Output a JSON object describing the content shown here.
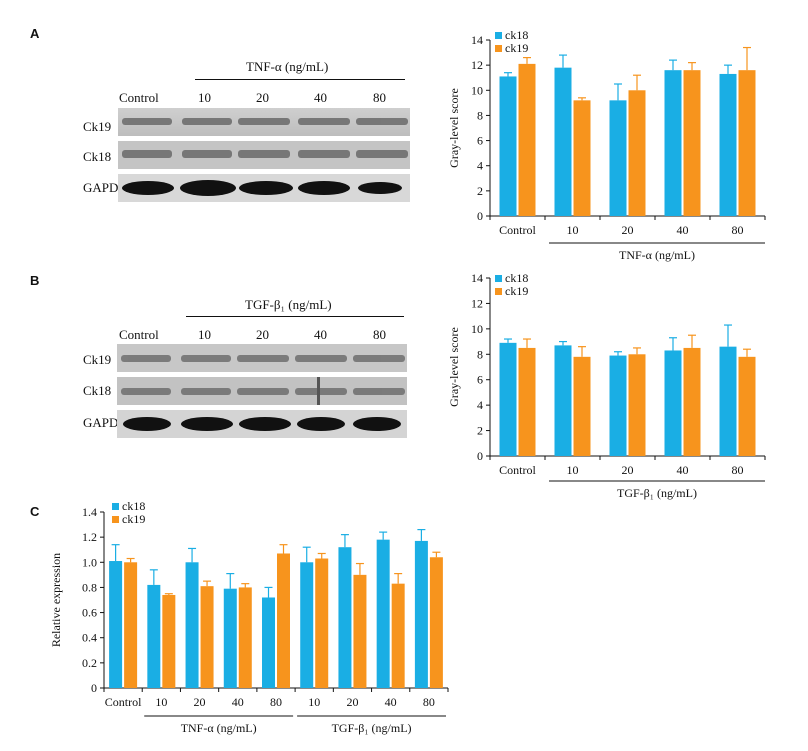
{
  "panels": {
    "A": {
      "letter": "A",
      "blot": {
        "treatment_label": "TNF-α (ng/mL)",
        "lanes": [
          "Control",
          "10",
          "20",
          "40",
          "80"
        ],
        "rows": [
          "Ck19",
          "Ck18",
          "GAPDH"
        ]
      }
    },
    "B": {
      "letter": "B",
      "blot": {
        "treatment_label": "TGF-β₁ (ng/mL)",
        "lanes": [
          "Control",
          "10",
          "20",
          "40",
          "80"
        ],
        "rows": [
          "Ck19",
          "Ck18",
          "GAPDH"
        ]
      }
    },
    "C": {
      "letter": "C"
    }
  },
  "chart_data": [
    {
      "id": "A",
      "type": "bar",
      "ylabel": "Gray-level score",
      "ylim": [
        0,
        14
      ],
      "yticks": [
        0,
        2,
        4,
        6,
        8,
        10,
        12,
        14
      ],
      "categories": [
        "Control",
        "10",
        "20",
        "40",
        "80"
      ],
      "group_label": "TNF-α (ng/mL)",
      "legend_position": "top-left",
      "series": [
        {
          "name": "ck18",
          "color": "#1aaee4",
          "values": [
            11.1,
            11.8,
            9.2,
            11.6,
            11.3
          ],
          "errors": [
            0.3,
            1.0,
            1.3,
            0.8,
            0.7
          ]
        },
        {
          "name": "ck19",
          "color": "#f7941d",
          "values": [
            12.1,
            9.2,
            10.0,
            11.6,
            11.6
          ],
          "errors": [
            0.5,
            0.2,
            1.2,
            0.6,
            1.8
          ]
        }
      ]
    },
    {
      "id": "B",
      "type": "bar",
      "ylabel": "Gray-level score",
      "ylim": [
        0,
        14
      ],
      "yticks": [
        0,
        2,
        4,
        6,
        8,
        10,
        12,
        14
      ],
      "categories": [
        "Control",
        "10",
        "20",
        "40",
        "80"
      ],
      "group_label": "TGF-β₁ (ng/mL)",
      "legend_position": "top-left",
      "series": [
        {
          "name": "ck18",
          "color": "#1aaee4",
          "values": [
            8.9,
            8.7,
            7.9,
            8.3,
            8.6
          ],
          "errors": [
            0.3,
            0.3,
            0.3,
            1.0,
            1.7
          ]
        },
        {
          "name": "ck19",
          "color": "#f7941d",
          "values": [
            8.5,
            7.8,
            8.0,
            8.5,
            7.8
          ],
          "errors": [
            0.7,
            0.8,
            0.5,
            1.0,
            0.6
          ]
        }
      ]
    },
    {
      "id": "C",
      "type": "bar",
      "ylabel": "Relative expression",
      "ylim": [
        0,
        1.4
      ],
      "yticks": [
        "0",
        "0.2",
        "0.4",
        "0.6",
        "0.8",
        "1.0",
        "1.2",
        "1.4"
      ],
      "categories": [
        "Control",
        "10",
        "20",
        "40",
        "80",
        "10",
        "20",
        "40",
        "80"
      ],
      "group_labels": [
        "TNF-α (ng/mL)",
        "TGF-β₁ (ng/mL)"
      ],
      "legend_position": "top-left",
      "series": [
        {
          "name": "ck18",
          "color": "#1aaee4",
          "values": [
            1.01,
            0.82,
            1.0,
            0.79,
            0.72,
            1.0,
            1.12,
            1.18,
            1.17
          ],
          "errors": [
            0.13,
            0.12,
            0.11,
            0.12,
            0.08,
            0.12,
            0.1,
            0.06,
            0.09
          ]
        },
        {
          "name": "ck19",
          "color": "#f7941d",
          "values": [
            1.0,
            0.74,
            0.81,
            0.8,
            1.07,
            1.03,
            0.9,
            0.83,
            1.04
          ],
          "errors": [
            0.03,
            0.01,
            0.04,
            0.03,
            0.07,
            0.04,
            0.09,
            0.08,
            0.04
          ]
        }
      ]
    }
  ]
}
